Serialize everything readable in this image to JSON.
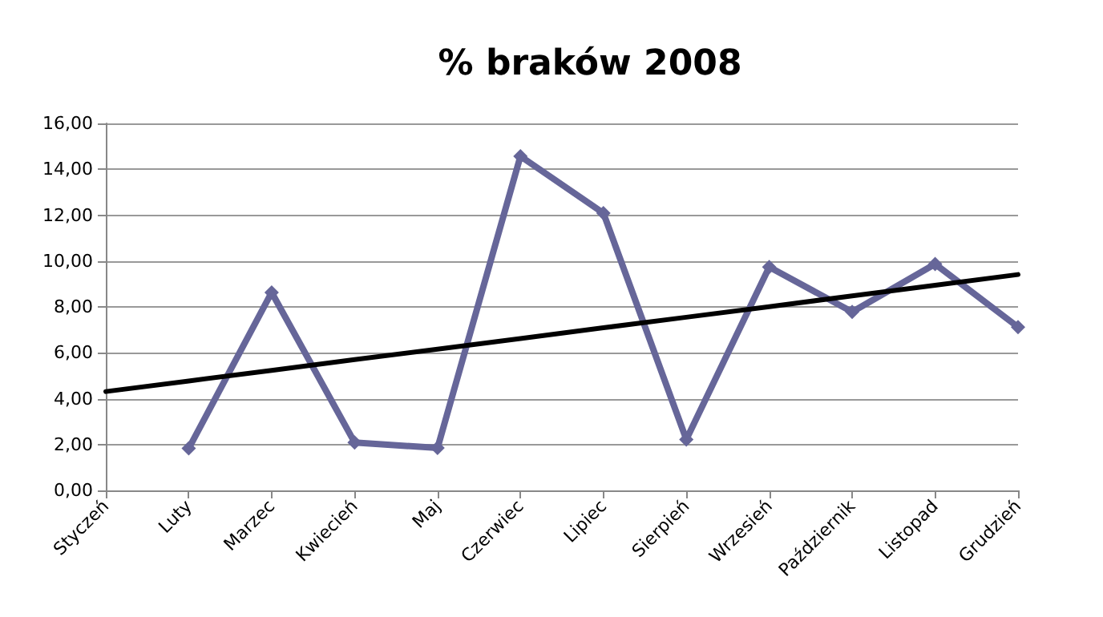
{
  "chart_data": {
    "type": "line",
    "title": "% braków 2008",
    "categories": [
      "Styczeń",
      "Luty",
      "Marzec",
      "Kwiecień",
      "Maj",
      "Czerwiec",
      "Lipiec",
      "Sierpień",
      "Wrzesień",
      "Październik",
      "Listopad",
      "Grudzień"
    ],
    "series": [
      {
        "color": "#666699",
        "marker": "diamond",
        "values": [
          null,
          1.83,
          8.63,
          2.09,
          1.85,
          14.57,
          12.09,
          2.22,
          9.74,
          7.78,
          9.87,
          7.12
        ]
      },
      {
        "color": "#000000",
        "marker": "none",
        "values": [
          4.31,
          4.77,
          5.23,
          5.7,
          6.16,
          6.62,
          7.09,
          7.55,
          8.01,
          8.48,
          8.94,
          9.41
        ]
      }
    ],
    "ylim": [
      0,
      16
    ],
    "yticks": [
      {
        "value": 0,
        "label": "0,00"
      },
      {
        "value": 2,
        "label": "2,00"
      },
      {
        "value": 4,
        "label": "4,00"
      },
      {
        "value": 6,
        "label": "6,00"
      },
      {
        "value": 8,
        "label": "8,00"
      },
      {
        "value": 10,
        "label": "10,00"
      },
      {
        "value": 12,
        "label": "12,00"
      },
      {
        "value": 14,
        "label": "14,00"
      },
      {
        "value": 16,
        "label": "16,00"
      }
    ],
    "grid": "y"
  }
}
